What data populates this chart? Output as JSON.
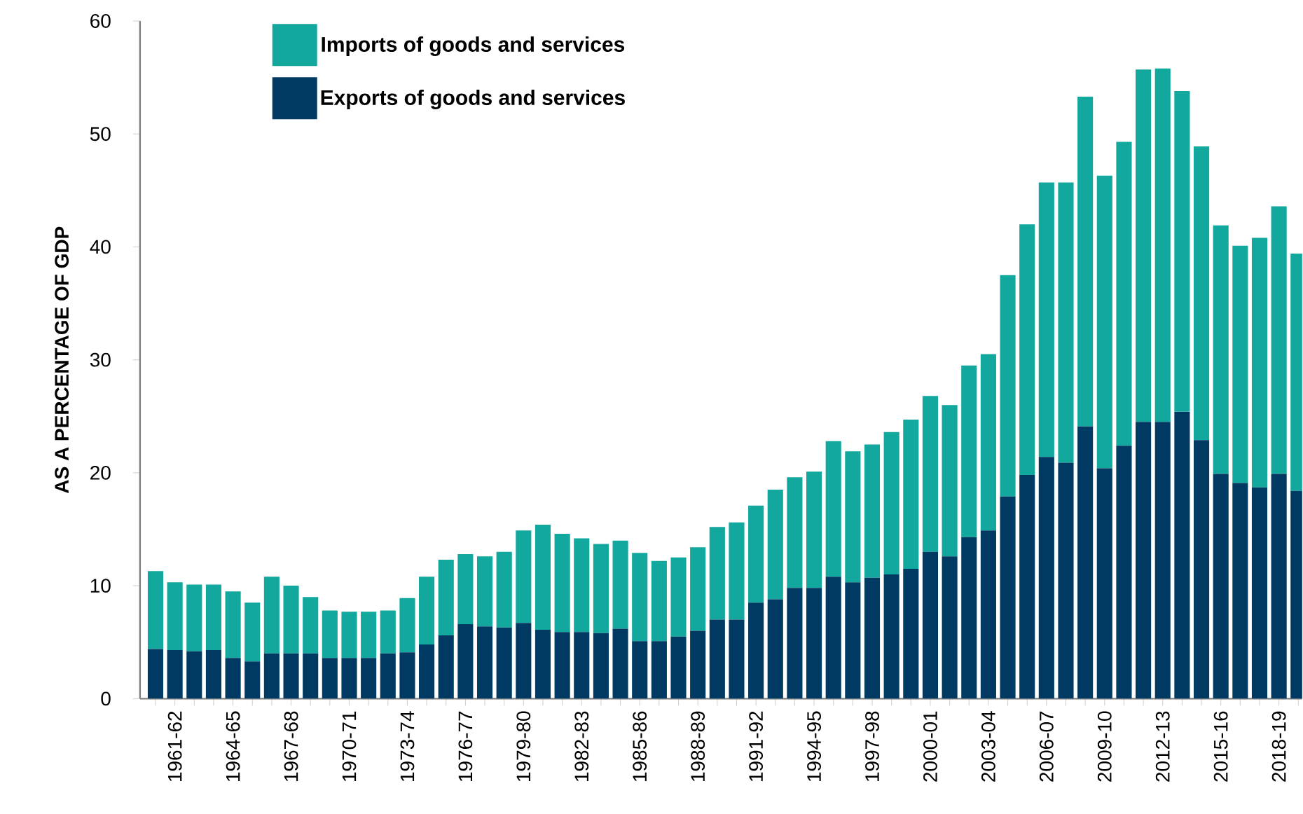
{
  "chart_data": {
    "type": "bar",
    "stacked": true,
    "ylabel": "AS A PERCENTAGE OF GDP",
    "legend": "top left",
    "categories": [
      null,
      "1961-62",
      null,
      null,
      "1964-65",
      null,
      null,
      "1967-68",
      null,
      null,
      "1970-71",
      null,
      null,
      "1973-74",
      null,
      null,
      "1976-77",
      null,
      null,
      "1979-80",
      null,
      null,
      "1982-83",
      null,
      null,
      "1985-86",
      null,
      null,
      "1988-89",
      null,
      null,
      "1991-92",
      null,
      null,
      "1994-95",
      null,
      null,
      "1997-98",
      null,
      null,
      "2000-01",
      null,
      null,
      "2003-04",
      null,
      null,
      "2006-07",
      null,
      null,
      "2009-10",
      null,
      null,
      "2012-13",
      null,
      null,
      "2015-16",
      null,
      null,
      "2018-19",
      null
    ],
    "ylim": [
      0,
      60
    ],
    "yticks": [
      0,
      10,
      20,
      30,
      40,
      50,
      60
    ],
    "series": [
      {
        "name": "Exports of goods and services",
        "color": "#003a63",
        "values": [
          4.4,
          4.3,
          4.2,
          4.3,
          3.6,
          3.3,
          4.0,
          4.0,
          4.0,
          3.6,
          3.6,
          3.6,
          4.0,
          4.1,
          4.8,
          5.6,
          6.6,
          6.4,
          6.3,
          6.7,
          6.1,
          5.9,
          5.9,
          5.8,
          6.2,
          5.1,
          5.1,
          5.5,
          6.0,
          7.0,
          7.0,
          8.5,
          8.8,
          9.8,
          9.8,
          10.8,
          10.3,
          10.7,
          11.0,
          11.5,
          13.0,
          12.6,
          14.3,
          14.9,
          17.9,
          19.8,
          21.4,
          20.9,
          24.1,
          20.4,
          22.4,
          24.5,
          24.5,
          25.4,
          22.9,
          19.9,
          19.1,
          18.7,
          19.9,
          18.4
        ]
      },
      {
        "name": "Imports of goods and services",
        "color": "#12a89d",
        "values": [
          6.9,
          6.0,
          5.9,
          5.8,
          5.9,
          5.2,
          6.8,
          6.0,
          5.0,
          4.2,
          4.1,
          4.1,
          3.8,
          4.8,
          6.0,
          6.7,
          6.2,
          6.2,
          6.7,
          8.2,
          9.3,
          8.7,
          8.3,
          7.9,
          7.8,
          7.8,
          7.1,
          7.0,
          7.4,
          8.2,
          8.6,
          8.6,
          9.7,
          9.8,
          10.3,
          12.0,
          11.6,
          11.8,
          12.6,
          13.2,
          13.8,
          13.4,
          15.2,
          15.6,
          19.6,
          22.2,
          24.3,
          24.8,
          29.2,
          25.9,
          26.9,
          31.2,
          31.3,
          28.4,
          26.0,
          22.0,
          21.0,
          22.1,
          23.7,
          21.0
        ]
      }
    ]
  }
}
